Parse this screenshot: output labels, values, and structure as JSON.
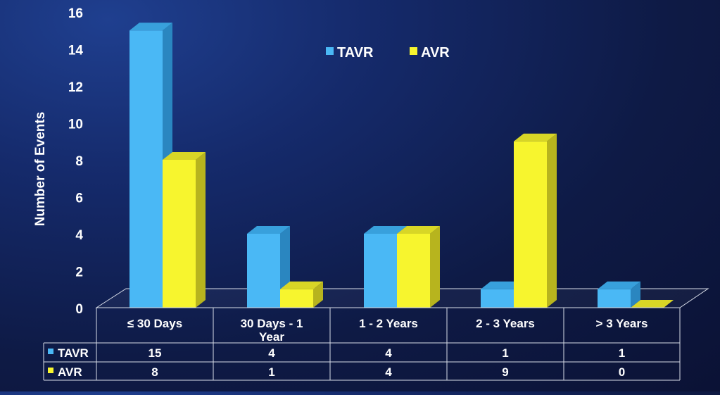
{
  "chart_data": {
    "type": "bar",
    "categories": [
      "≤ 30 Days",
      "30 Days - 1 Year",
      "1 - 2 Years",
      "2 - 3 Years",
      "> 3 Years"
    ],
    "category_lines": [
      [
        "≤ 30 Days"
      ],
      [
        "30 Days - 1",
        "Year"
      ],
      [
        "1 - 2 Years"
      ],
      [
        "2 - 3 Years"
      ],
      [
        "> 3 Years"
      ]
    ],
    "series": [
      {
        "name": "TAVR",
        "values": [
          15,
          4,
          4,
          1,
          1
        ],
        "color": "#4ab8f5",
        "side_color": "#2a86c0",
        "top_color": "#38a0dc"
      },
      {
        "name": "AVR",
        "values": [
          8,
          1,
          4,
          9,
          0
        ],
        "color": "#f7f52e",
        "side_color": "#b7b41e",
        "top_color": "#d8d626"
      }
    ],
    "ylabel": "Number of Events",
    "ylim": [
      0,
      16
    ],
    "yticks": [
      "0",
      "2",
      "4",
      "6",
      "8",
      "10",
      "12",
      "14",
      "16"
    ],
    "legend": {
      "position": "top-center"
    },
    "data_table": true,
    "grid": false
  }
}
